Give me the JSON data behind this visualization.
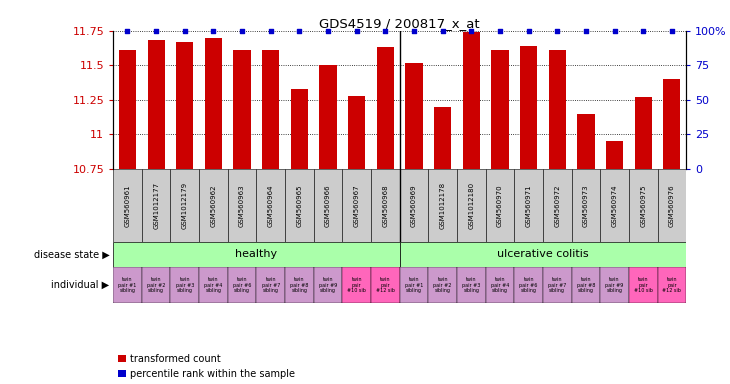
{
  "title": "GDS4519 / 200817_x_at",
  "samples": [
    "GSM560961",
    "GSM1012177",
    "GSM1012179",
    "GSM560962",
    "GSM560963",
    "GSM560964",
    "GSM560965",
    "GSM560966",
    "GSM560967",
    "GSM560968",
    "GSM560969",
    "GSM1012178",
    "GSM1012180",
    "GSM560970",
    "GSM560971",
    "GSM560972",
    "GSM560973",
    "GSM560974",
    "GSM560975",
    "GSM560976"
  ],
  "bar_values": [
    11.61,
    11.68,
    11.67,
    11.7,
    11.61,
    11.61,
    11.33,
    11.5,
    11.28,
    11.63,
    11.52,
    11.2,
    11.74,
    11.61,
    11.64,
    11.61,
    11.15,
    10.95,
    11.27,
    11.4
  ],
  "bar_color": "#cc0000",
  "percentile_color": "#0000cc",
  "ylim_left": [
    10.75,
    11.75
  ],
  "ylim_right": [
    0,
    100
  ],
  "yticks_left": [
    10.75,
    11.0,
    11.25,
    11.5,
    11.75
  ],
  "yticks_right": [
    0,
    25,
    50,
    75,
    100
  ],
  "ytick_labels_left": [
    "10.75",
    "11",
    "11.25",
    "11.5",
    "11.75"
  ],
  "ytick_labels_right": [
    "0",
    "25",
    "50",
    "75",
    "100%"
  ],
  "healthy_label": "healthy",
  "uc_label": "ulcerative colitis",
  "healthy_color": "#aaffaa",
  "uc_color": "#aaffaa",
  "individual_labels": [
    "twin\npair #1\nsibling",
    "twin\npair #2\nsibling",
    "twin\npair #3\nsibling",
    "twin\npair #4\nsibling",
    "twin\npair #6\nsibling",
    "twin\npair #7\nsibling",
    "twin\npair #8\nsibling",
    "twin\npair #9\nsibling",
    "twin\npair\n#10 sib",
    "twin\npair\n#12 sib",
    "twin\npair #1\nsibling",
    "twin\npair #2\nsibling",
    "twin\npair #3\nsibling",
    "twin\npair #4\nsibling",
    "twin\npair #6\nsibling",
    "twin\npair #7\nsibling",
    "twin\npair #8\nsibling",
    "twin\npair #9\nsibling",
    "twin\npair\n#10 sib",
    "twin\npair\n#12 sib"
  ],
  "individual_colors": [
    "#cc99cc",
    "#cc99cc",
    "#cc99cc",
    "#cc99cc",
    "#cc99cc",
    "#cc99cc",
    "#cc99cc",
    "#cc99cc",
    "#ff66bb",
    "#ff66bb",
    "#cc99cc",
    "#cc99cc",
    "#cc99cc",
    "#cc99cc",
    "#cc99cc",
    "#cc99cc",
    "#cc99cc",
    "#cc99cc",
    "#ff66bb",
    "#ff66bb"
  ],
  "xtick_bg_color": "#cccccc",
  "legend_red_label": "transformed count",
  "legend_blue_label": "percentile rank within the sample",
  "separator_after": 9,
  "disease_state_label": "disease state",
  "individual_label": "individual"
}
